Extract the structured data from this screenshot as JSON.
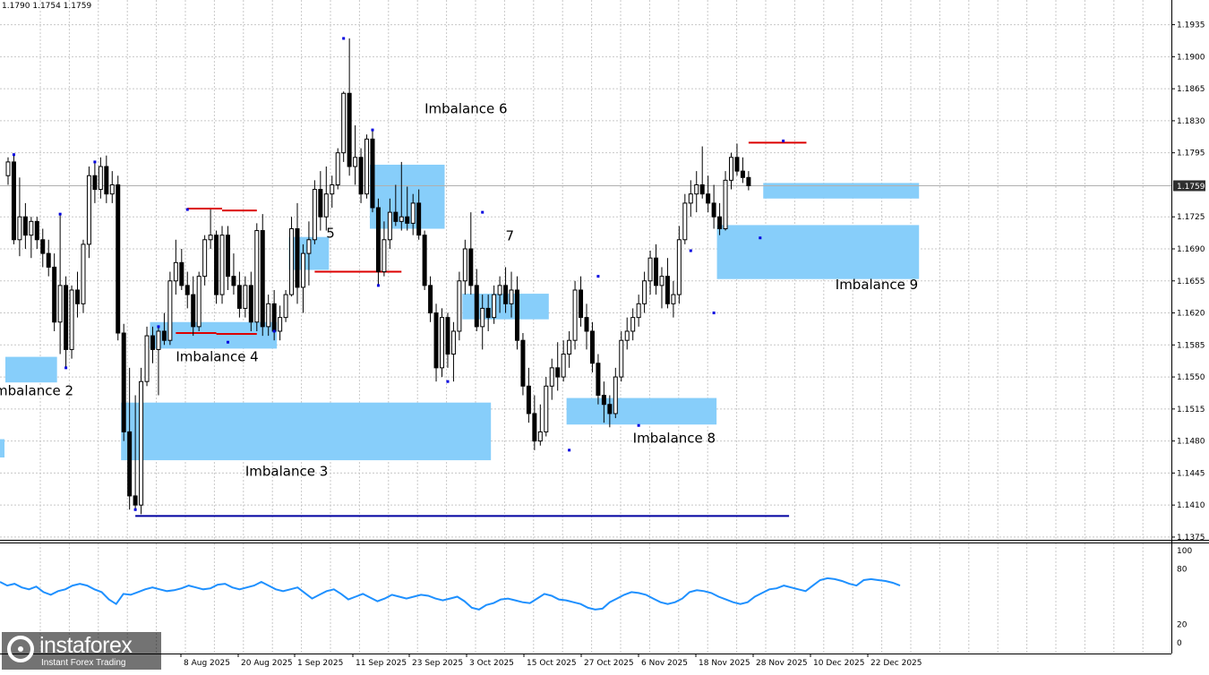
{
  "chart_data": {
    "type": "candlestick",
    "ohlc_header": "1.1790 1.1754 1.1759",
    "last_price_label": "1.1759",
    "y_axis_ticks": [
      "1.1935",
      "1.1900",
      "1.1865",
      "1.1830",
      "1.1795",
      "1.1759",
      "1.1725",
      "1.1690",
      "1.1655",
      "1.1620",
      "1.1585",
      "1.1550",
      "1.1515",
      "1.1480",
      "1.1445",
      "1.1410",
      "1.1375"
    ],
    "price_ylim": [
      1.1372,
      1.1962
    ],
    "x_axis_labels": [
      "8 Aug 2025",
      "20 Aug 2025",
      "1 Sep 2025",
      "11 Sep 2025",
      "23 Sep 2025",
      "3 Oct 2025",
      "15 Oct 2025",
      "27 Oct 2025",
      "6 Nov 2025",
      "18 Nov 2025",
      "28 Nov 2025",
      "10 Dec 2025",
      "22 Dec 2025"
    ],
    "candles": [
      {
        "o": 1.177,
        "h": 1.179,
        "l": 1.176,
        "c": 1.1785
      },
      {
        "o": 1.1785,
        "h": 1.1793,
        "l": 1.1695,
        "c": 1.17
      },
      {
        "o": 1.17,
        "h": 1.1768,
        "l": 1.1682,
        "c": 1.1725
      },
      {
        "o": 1.1725,
        "h": 1.174,
        "l": 1.169,
        "c": 1.1705
      },
      {
        "o": 1.1705,
        "h": 1.1725,
        "l": 1.168,
        "c": 1.172
      },
      {
        "o": 1.172,
        "h": 1.1725,
        "l": 1.169,
        "c": 1.17
      },
      {
        "o": 1.17,
        "h": 1.1712,
        "l": 1.167,
        "c": 1.1685
      },
      {
        "o": 1.1685,
        "h": 1.17,
        "l": 1.166,
        "c": 1.167
      },
      {
        "o": 1.167,
        "h": 1.1685,
        "l": 1.16,
        "c": 1.161
      },
      {
        "o": 1.161,
        "h": 1.1728,
        "l": 1.1575,
        "c": 1.165
      },
      {
        "o": 1.165,
        "h": 1.166,
        "l": 1.156,
        "c": 1.158
      },
      {
        "o": 1.158,
        "h": 1.165,
        "l": 1.157,
        "c": 1.1645
      },
      {
        "o": 1.1645,
        "h": 1.1665,
        "l": 1.1615,
        "c": 1.163
      },
      {
        "o": 1.163,
        "h": 1.17,
        "l": 1.162,
        "c": 1.1695
      },
      {
        "o": 1.1695,
        "h": 1.178,
        "l": 1.168,
        "c": 1.177
      },
      {
        "o": 1.177,
        "h": 1.1785,
        "l": 1.174,
        "c": 1.1755
      },
      {
        "o": 1.1755,
        "h": 1.179,
        "l": 1.1745,
        "c": 1.178
      },
      {
        "o": 1.178,
        "h": 1.1792,
        "l": 1.174,
        "c": 1.175
      },
      {
        "o": 1.175,
        "h": 1.1775,
        "l": 1.174,
        "c": 1.176
      },
      {
        "o": 1.176,
        "h": 1.177,
        "l": 1.159,
        "c": 1.1598
      },
      {
        "o": 1.1598,
        "h": 1.1608,
        "l": 1.148,
        "c": 1.149
      },
      {
        "o": 1.149,
        "h": 1.156,
        "l": 1.1405,
        "c": 1.142
      },
      {
        "o": 1.142,
        "h": 1.153,
        "l": 1.1405,
        "c": 1.141
      },
      {
        "o": 1.141,
        "h": 1.156,
        "l": 1.14,
        "c": 1.1545
      },
      {
        "o": 1.1545,
        "h": 1.1605,
        "l": 1.154,
        "c": 1.1595
      },
      {
        "o": 1.1595,
        "h": 1.1605,
        "l": 1.1565,
        "c": 1.158
      },
      {
        "o": 1.158,
        "h": 1.1605,
        "l": 1.153,
        "c": 1.16
      },
      {
        "o": 1.16,
        "h": 1.162,
        "l": 1.1585,
        "c": 1.159
      },
      {
        "o": 1.159,
        "h": 1.1665,
        "l": 1.1585,
        "c": 1.1655
      },
      {
        "o": 1.1655,
        "h": 1.17,
        "l": 1.164,
        "c": 1.1675
      },
      {
        "o": 1.1675,
        "h": 1.169,
        "l": 1.1645,
        "c": 1.165
      },
      {
        "o": 1.165,
        "h": 1.1665,
        "l": 1.1625,
        "c": 1.164
      },
      {
        "o": 1.164,
        "h": 1.166,
        "l": 1.1595,
        "c": 1.1605
      },
      {
        "o": 1.1605,
        "h": 1.1665,
        "l": 1.16,
        "c": 1.166
      },
      {
        "o": 1.166,
        "h": 1.1705,
        "l": 1.165,
        "c": 1.17
      },
      {
        "o": 1.17,
        "h": 1.1733,
        "l": 1.169,
        "c": 1.1705
      },
      {
        "o": 1.1705,
        "h": 1.171,
        "l": 1.163,
        "c": 1.164
      },
      {
        "o": 1.164,
        "h": 1.1715,
        "l": 1.163,
        "c": 1.1705
      },
      {
        "o": 1.1705,
        "h": 1.1715,
        "l": 1.1645,
        "c": 1.166
      },
      {
        "o": 1.166,
        "h": 1.1685,
        "l": 1.164,
        "c": 1.165
      },
      {
        "o": 1.165,
        "h": 1.1665,
        "l": 1.1615,
        "c": 1.1625
      },
      {
        "o": 1.1625,
        "h": 1.166,
        "l": 1.1615,
        "c": 1.165
      },
      {
        "o": 1.165,
        "h": 1.1665,
        "l": 1.16,
        "c": 1.161
      },
      {
        "o": 1.161,
        "h": 1.1718,
        "l": 1.16,
        "c": 1.171
      },
      {
        "o": 1.171,
        "h": 1.1728,
        "l": 1.1595,
        "c": 1.1605
      },
      {
        "o": 1.1605,
        "h": 1.164,
        "l": 1.1595,
        "c": 1.163
      },
      {
        "o": 1.163,
        "h": 1.1645,
        "l": 1.159,
        "c": 1.16
      },
      {
        "o": 1.16,
        "h": 1.1628,
        "l": 1.159,
        "c": 1.1615
      },
      {
        "o": 1.1615,
        "h": 1.1645,
        "l": 1.161,
        "c": 1.164
      },
      {
        "o": 1.164,
        "h": 1.1725,
        "l": 1.1638,
        "c": 1.1712
      },
      {
        "o": 1.1712,
        "h": 1.174,
        "l": 1.163,
        "c": 1.1648
      },
      {
        "o": 1.1648,
        "h": 1.1695,
        "l": 1.162,
        "c": 1.1685
      },
      {
        "o": 1.1685,
        "h": 1.172,
        "l": 1.165,
        "c": 1.17
      },
      {
        "o": 1.17,
        "h": 1.1765,
        "l": 1.1695,
        "c": 1.1755
      },
      {
        "o": 1.1755,
        "h": 1.1775,
        "l": 1.171,
        "c": 1.1725
      },
      {
        "o": 1.1725,
        "h": 1.178,
        "l": 1.171,
        "c": 1.175
      },
      {
        "o": 1.175,
        "h": 1.177,
        "l": 1.1735,
        "c": 1.176
      },
      {
        "o": 1.176,
        "h": 1.18,
        "l": 1.1755,
        "c": 1.1795
      },
      {
        "o": 1.1795,
        "h": 1.1862,
        "l": 1.1785,
        "c": 1.186
      },
      {
        "o": 1.186,
        "h": 1.192,
        "l": 1.177,
        "c": 1.178
      },
      {
        "o": 1.178,
        "h": 1.1825,
        "l": 1.176,
        "c": 1.179
      },
      {
        "o": 1.179,
        "h": 1.18,
        "l": 1.174,
        "c": 1.175
      },
      {
        "o": 1.175,
        "h": 1.1815,
        "l": 1.1745,
        "c": 1.181
      },
      {
        "o": 1.181,
        "h": 1.182,
        "l": 1.173,
        "c": 1.1735
      },
      {
        "o": 1.1735,
        "h": 1.1745,
        "l": 1.165,
        "c": 1.1665
      },
      {
        "o": 1.1665,
        "h": 1.172,
        "l": 1.166,
        "c": 1.17
      },
      {
        "o": 1.17,
        "h": 1.1745,
        "l": 1.169,
        "c": 1.173
      },
      {
        "o": 1.173,
        "h": 1.176,
        "l": 1.1715,
        "c": 1.172
      },
      {
        "o": 1.172,
        "h": 1.1785,
        "l": 1.171,
        "c": 1.1725
      },
      {
        "o": 1.1725,
        "h": 1.1758,
        "l": 1.171,
        "c": 1.1718
      },
      {
        "o": 1.1718,
        "h": 1.175,
        "l": 1.1705,
        "c": 1.174
      },
      {
        "o": 1.174,
        "h": 1.1755,
        "l": 1.17,
        "c": 1.1705
      },
      {
        "o": 1.1705,
        "h": 1.171,
        "l": 1.1645,
        "c": 1.165
      },
      {
        "o": 1.165,
        "h": 1.166,
        "l": 1.161,
        "c": 1.162
      },
      {
        "o": 1.162,
        "h": 1.163,
        "l": 1.1545,
        "c": 1.156
      },
      {
        "o": 1.156,
        "h": 1.1625,
        "l": 1.155,
        "c": 1.1615
      },
      {
        "o": 1.1615,
        "h": 1.162,
        "l": 1.156,
        "c": 1.1575
      },
      {
        "o": 1.1575,
        "h": 1.161,
        "l": 1.1545,
        "c": 1.16
      },
      {
        "o": 1.16,
        "h": 1.1665,
        "l": 1.159,
        "c": 1.1655
      },
      {
        "o": 1.1655,
        "h": 1.17,
        "l": 1.164,
        "c": 1.169
      },
      {
        "o": 1.169,
        "h": 1.173,
        "l": 1.164,
        "c": 1.165
      },
      {
        "o": 1.165,
        "h": 1.1668,
        "l": 1.16,
        "c": 1.1605
      },
      {
        "o": 1.1605,
        "h": 1.164,
        "l": 1.158,
        "c": 1.1625
      },
      {
        "o": 1.1625,
        "h": 1.164,
        "l": 1.16,
        "c": 1.1615
      },
      {
        "o": 1.1615,
        "h": 1.165,
        "l": 1.1608,
        "c": 1.164
      },
      {
        "o": 1.164,
        "h": 1.166,
        "l": 1.162,
        "c": 1.165
      },
      {
        "o": 1.165,
        "h": 1.167,
        "l": 1.162,
        "c": 1.163
      },
      {
        "o": 1.163,
        "h": 1.1665,
        "l": 1.1615,
        "c": 1.1645
      },
      {
        "o": 1.1645,
        "h": 1.166,
        "l": 1.158,
        "c": 1.159
      },
      {
        "o": 1.159,
        "h": 1.1598,
        "l": 1.153,
        "c": 1.154
      },
      {
        "o": 1.154,
        "h": 1.156,
        "l": 1.15,
        "c": 1.151
      },
      {
        "o": 1.151,
        "h": 1.153,
        "l": 1.147,
        "c": 1.148
      },
      {
        "o": 1.148,
        "h": 1.152,
        "l": 1.1475,
        "c": 1.149
      },
      {
        "o": 1.149,
        "h": 1.155,
        "l": 1.1485,
        "c": 1.154
      },
      {
        "o": 1.154,
        "h": 1.157,
        "l": 1.1525,
        "c": 1.156
      },
      {
        "o": 1.156,
        "h": 1.1588,
        "l": 1.1535,
        "c": 1.155
      },
      {
        "o": 1.155,
        "h": 1.159,
        "l": 1.1545,
        "c": 1.1575
      },
      {
        "o": 1.1575,
        "h": 1.16,
        "l": 1.156,
        "c": 1.159
      },
      {
        "o": 1.159,
        "h": 1.1655,
        "l": 1.158,
        "c": 1.1645
      },
      {
        "o": 1.1645,
        "h": 1.166,
        "l": 1.1605,
        "c": 1.1615
      },
      {
        "o": 1.1615,
        "h": 1.163,
        "l": 1.158,
        "c": 1.16
      },
      {
        "o": 1.16,
        "h": 1.161,
        "l": 1.1555,
        "c": 1.1565
      },
      {
        "o": 1.1565,
        "h": 1.1575,
        "l": 1.152,
        "c": 1.153
      },
      {
        "o": 1.153,
        "h": 1.1545,
        "l": 1.15,
        "c": 1.152
      },
      {
        "o": 1.152,
        "h": 1.153,
        "l": 1.1495,
        "c": 1.151
      },
      {
        "o": 1.151,
        "h": 1.156,
        "l": 1.1505,
        "c": 1.155
      },
      {
        "o": 1.155,
        "h": 1.16,
        "l": 1.1545,
        "c": 1.159
      },
      {
        "o": 1.159,
        "h": 1.1615,
        "l": 1.158,
        "c": 1.16
      },
      {
        "o": 1.16,
        "h": 1.1625,
        "l": 1.159,
        "c": 1.1615
      },
      {
        "o": 1.1615,
        "h": 1.164,
        "l": 1.1605,
        "c": 1.163
      },
      {
        "o": 1.163,
        "h": 1.1665,
        "l": 1.162,
        "c": 1.1655
      },
      {
        "o": 1.1655,
        "h": 1.1688,
        "l": 1.164,
        "c": 1.168
      },
      {
        "o": 1.168,
        "h": 1.1695,
        "l": 1.164,
        "c": 1.165
      },
      {
        "o": 1.165,
        "h": 1.167,
        "l": 1.1625,
        "c": 1.166
      },
      {
        "o": 1.166,
        "h": 1.168,
        "l": 1.1625,
        "c": 1.163
      },
      {
        "o": 1.163,
        "h": 1.1655,
        "l": 1.1615,
        "c": 1.164
      },
      {
        "o": 1.164,
        "h": 1.1715,
        "l": 1.163,
        "c": 1.17
      },
      {
        "o": 1.17,
        "h": 1.175,
        "l": 1.1695,
        "c": 1.174
      },
      {
        "o": 1.174,
        "h": 1.1765,
        "l": 1.1725,
        "c": 1.175
      },
      {
        "o": 1.175,
        "h": 1.1775,
        "l": 1.173,
        "c": 1.176
      },
      {
        "o": 1.176,
        "h": 1.1802,
        "l": 1.1745,
        "c": 1.175
      },
      {
        "o": 1.175,
        "h": 1.177,
        "l": 1.173,
        "c": 1.174
      },
      {
        "o": 1.174,
        "h": 1.176,
        "l": 1.1712,
        "c": 1.1725
      },
      {
        "o": 1.1725,
        "h": 1.174,
        "l": 1.1705,
        "c": 1.1712
      },
      {
        "o": 1.1712,
        "h": 1.1775,
        "l": 1.171,
        "c": 1.1765
      },
      {
        "o": 1.1765,
        "h": 1.1795,
        "l": 1.1755,
        "c": 1.179
      },
      {
        "o": 1.179,
        "h": 1.1805,
        "l": 1.177,
        "c": 1.1775
      },
      {
        "o": 1.1775,
        "h": 1.179,
        "l": 1.1762,
        "c": 1.1768
      },
      {
        "o": 1.1768,
        "h": 1.1775,
        "l": 1.1754,
        "c": 1.1759
      }
    ],
    "zones": [
      {
        "label": "Imbalance 2",
        "top": 1.1572,
        "bottom": 1.1544,
        "x_from": 0,
        "x_to": 8,
        "label_price": 1.1535,
        "label_slot": -3
      },
      {
        "label": "",
        "top": 1.1482,
        "bottom": 1.1462,
        "x_from": -6,
        "x_to": -6
      },
      {
        "label": "Imbalance 3",
        "top": 1.1522,
        "bottom": 1.1459,
        "x_from": 20,
        "x_to": 83,
        "label_price": 1.1447,
        "label_slot": 41
      },
      {
        "label": "Imbalance 4",
        "top": 1.161,
        "bottom": 1.1581,
        "x_from": 25,
        "x_to": 46,
        "label_price": 1.1572,
        "label_slot": 29
      },
      {
        "label": "5",
        "top": 1.1703,
        "bottom": 1.1667,
        "x_from": 49,
        "x_to": 55,
        "label_price": 1.1707,
        "label_slot": 55
      },
      {
        "label": "Imbalance 6",
        "top": 1.1782,
        "bottom": 1.1712,
        "x_from": 63,
        "x_to": 75,
        "label_price": 1.1843,
        "label_slot": 72
      },
      {
        "label": "7",
        "top": 1.1641,
        "bottom": 1.1613,
        "x_from": 79,
        "x_to": 93,
        "label_price": 1.1704,
        "label_slot": 86
      },
      {
        "label": "Imbalance 8",
        "top": 1.1527,
        "bottom": 1.1498,
        "x_from": 97,
        "x_to": 122,
        "label_price": 1.1483,
        "label_slot": 108
      },
      {
        "label": "Imbalance 9",
        "top": 1.1716,
        "bottom": 1.1657,
        "x_from": 123,
        "x_to": 157,
        "label_price": 1.1651,
        "label_slot": 143
      },
      {
        "label": "",
        "top": 1.1762,
        "bottom": 1.1745,
        "x_from": 131,
        "x_to": 157
      }
    ],
    "red_lines": [
      {
        "price": 1.1734,
        "x_from": 31,
        "x_to": 37
      },
      {
        "price": 1.1732,
        "x_from": 37,
        "x_to": 43
      },
      {
        "price": 1.1598,
        "x_from": 29,
        "x_to": 36
      },
      {
        "price": 1.1597,
        "x_from": 36,
        "x_to": 43
      },
      {
        "price": 1.1665,
        "x_from": 53,
        "x_to": 68
      },
      {
        "price": 1.1806,
        "x_from": 128,
        "x_to": 138
      }
    ],
    "blue_line": {
      "price": 1.1398,
      "x_from": 22,
      "x_to": 135
    },
    "swing_points": [
      {
        "slot": 1,
        "price": 1.1793
      },
      {
        "slot": 9,
        "price": 1.1728
      },
      {
        "slot": 10,
        "price": 1.156
      },
      {
        "slot": 15,
        "price": 1.1785
      },
      {
        "slot": 22,
        "price": 1.1405
      },
      {
        "slot": 26,
        "price": 1.1605
      },
      {
        "slot": 31,
        "price": 1.1733
      },
      {
        "slot": 38,
        "price": 1.1588
      },
      {
        "slot": 46,
        "price": 1.16
      },
      {
        "slot": 58,
        "price": 1.192
      },
      {
        "slot": 63,
        "price": 1.182
      },
      {
        "slot": 64,
        "price": 1.165
      },
      {
        "slot": 76,
        "price": 1.1545
      },
      {
        "slot": 82,
        "price": 1.173
      },
      {
        "slot": 97,
        "price": 1.147
      },
      {
        "slot": 102,
        "price": 1.166
      },
      {
        "slot": 109,
        "price": 1.1497
      },
      {
        "slot": 118,
        "price": 1.1688
      },
      {
        "slot": 122,
        "price": 1.162
      },
      {
        "slot": 130,
        "price": 1.1702
      },
      {
        "slot": 134,
        "price": 1.1808
      }
    ],
    "oscillator": {
      "ylim": [
        0,
        100
      ],
      "ticks": [
        "100",
        "80",
        "20",
        "0"
      ],
      "levels": [
        80,
        20
      ],
      "values": [
        66,
        62,
        64,
        60,
        58,
        61,
        55,
        52,
        56,
        58,
        62,
        64,
        62,
        58,
        55,
        47,
        42,
        53,
        52,
        55,
        58,
        60,
        58,
        56,
        57,
        59,
        62,
        60,
        58,
        59,
        63,
        64,
        60,
        58,
        60,
        62,
        66,
        62,
        58,
        56,
        58,
        60,
        54,
        48,
        52,
        56,
        58,
        53,
        47,
        50,
        53,
        49,
        45,
        48,
        52,
        50,
        48,
        50,
        52,
        51,
        48,
        46,
        48,
        50,
        45,
        38,
        36,
        41,
        43,
        47,
        48,
        46,
        44,
        43,
        48,
        53,
        51,
        47,
        46,
        44,
        42,
        38,
        36,
        37,
        44,
        48,
        52,
        55,
        54,
        52,
        48,
        44,
        42,
        44,
        48,
        55,
        57,
        56,
        54,
        50,
        47,
        44,
        42,
        44,
        50,
        54,
        58,
        59,
        62,
        60,
        58,
        56,
        62,
        68,
        70,
        69,
        67,
        64,
        62,
        68,
        69,
        68,
        67,
        65,
        62
      ]
    }
  },
  "watermark": {
    "brand": "instaforex",
    "tagline": "Instant Forex Trading"
  }
}
